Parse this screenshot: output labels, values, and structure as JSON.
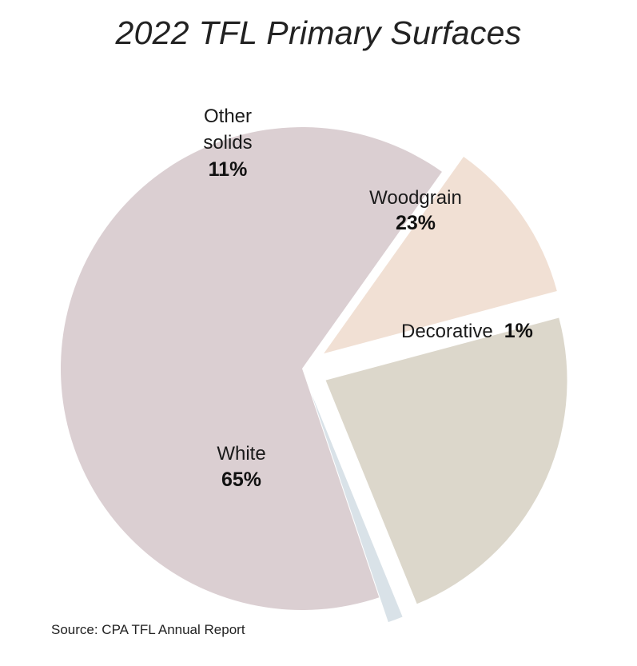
{
  "chart_data": {
    "type": "pie",
    "title": "2022 TFL Primary Surfaces",
    "slices": [
      {
        "label": "Woodgrain",
        "lines": [
          "Woodgrain"
        ],
        "value": 23,
        "value_label": "23%",
        "color": "#dcd7cb",
        "exploded": true
      },
      {
        "label": "Decorative",
        "lines": [
          "Decorative"
        ],
        "value": 1,
        "value_label": "1%",
        "color": "#d9e2e8",
        "exploded": true
      },
      {
        "label": "White",
        "lines": [
          "White"
        ],
        "value": 65,
        "value_label": "65%",
        "color": "#dbcfd2",
        "exploded": false
      },
      {
        "label": "Other solids",
        "lines": [
          "Other",
          "solids"
        ],
        "value": 11,
        "value_label": "11%",
        "color": "#f1e0d4",
        "exploded": true
      }
    ]
  },
  "source": "Source:  CPA TFL Annual Report"
}
